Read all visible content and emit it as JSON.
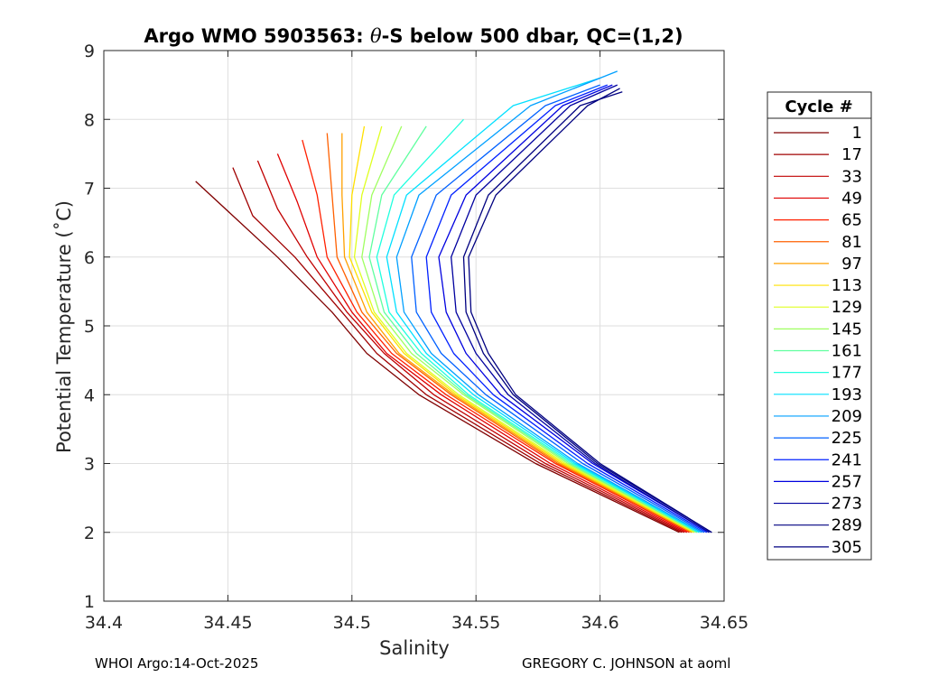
{
  "chart_data": {
    "type": "line",
    "title_prefix": "Argo WMO 5903563: ",
    "title_theta": "θ",
    "title_suffix": "-S below 500 dbar,  QC=(1,2)",
    "xlabel": "Salinity",
    "ylabel": "Potential Temperature (˚C)",
    "xlim": [
      34.4,
      34.65
    ],
    "ylim": [
      1,
      9
    ],
    "xticks": [
      34.4,
      34.45,
      34.5,
      34.55,
      34.6,
      34.65
    ],
    "xtick_labels": [
      "34.4",
      "34.45",
      "34.5",
      "34.55",
      "34.6",
      "34.65"
    ],
    "yticks": [
      1,
      2,
      3,
      4,
      5,
      6,
      7,
      8,
      9
    ],
    "ytick_labels": [
      "1",
      "2",
      "3",
      "4",
      "5",
      "6",
      "7",
      "8",
      "9"
    ],
    "grid": true,
    "legend_title": "Cycle #",
    "legend_position": "outside-right",
    "series": [
      {
        "name": "1",
        "color": "#800000",
        "theta": [
          2.0,
          3.0,
          4.0,
          4.6,
          5.2,
          6.0,
          6.6,
          7.1
        ],
        "salinity": [
          34.632,
          34.574,
          34.527,
          34.506,
          34.492,
          34.47,
          34.452,
          34.437
        ]
      },
      {
        "name": "17",
        "color": "#a00000",
        "theta": [
          2.0,
          3.0,
          4.0,
          4.6,
          5.2,
          6.0,
          6.6,
          7.3
        ],
        "salinity": [
          34.633,
          34.576,
          34.53,
          34.51,
          34.496,
          34.477,
          34.46,
          34.452
        ]
      },
      {
        "name": "33",
        "color": "#c00000",
        "theta": [
          2.0,
          3.0,
          4.0,
          4.6,
          5.2,
          6.0,
          6.7,
          7.4
        ],
        "salinity": [
          34.634,
          34.578,
          34.533,
          34.513,
          34.498,
          34.482,
          34.47,
          34.462
        ]
      },
      {
        "name": "49",
        "color": "#e00000",
        "theta": [
          2.0,
          3.0,
          4.0,
          4.6,
          5.2,
          6.0,
          6.8,
          7.5
        ],
        "salinity": [
          34.635,
          34.58,
          34.536,
          34.514,
          34.5,
          34.486,
          34.478,
          34.47
        ]
      },
      {
        "name": "65",
        "color": "#ff2000",
        "theta": [
          2.0,
          3.0,
          4.0,
          4.6,
          5.2,
          6.0,
          6.9,
          7.7
        ],
        "salinity": [
          34.636,
          34.582,
          34.538,
          34.516,
          34.502,
          34.49,
          34.486,
          34.48
        ]
      },
      {
        "name": "81",
        "color": "#ff6000",
        "theta": [
          2.0,
          3.0,
          4.0,
          4.6,
          5.2,
          6.0,
          6.9,
          7.8
        ],
        "salinity": [
          34.637,
          34.583,
          34.54,
          34.518,
          34.504,
          34.494,
          34.492,
          34.49
        ]
      },
      {
        "name": "97",
        "color": "#ffa000",
        "theta": [
          2.0,
          3.0,
          4.0,
          4.6,
          5.2,
          6.0,
          6.9,
          7.8
        ],
        "salinity": [
          34.637,
          34.584,
          34.541,
          34.519,
          34.506,
          34.497,
          34.496,
          34.496
        ]
      },
      {
        "name": "113",
        "color": "#ffe000",
        "theta": [
          2.0,
          3.0,
          4.0,
          4.6,
          5.2,
          6.0,
          6.9,
          7.9
        ],
        "salinity": [
          34.638,
          34.585,
          34.542,
          34.521,
          34.508,
          34.499,
          34.5,
          34.505
        ]
      },
      {
        "name": "129",
        "color": "#dfff20",
        "theta": [
          2.0,
          3.0,
          4.0,
          4.6,
          5.2,
          6.0,
          6.9,
          7.9
        ],
        "salinity": [
          34.638,
          34.586,
          34.543,
          34.522,
          34.509,
          34.501,
          34.504,
          34.512
        ]
      },
      {
        "name": "145",
        "color": "#9fff60",
        "theta": [
          2.0,
          3.0,
          4.0,
          4.6,
          5.2,
          6.0,
          6.9,
          7.9
        ],
        "salinity": [
          34.639,
          34.587,
          34.545,
          34.524,
          34.511,
          34.504,
          34.508,
          34.52
        ]
      },
      {
        "name": "161",
        "color": "#60ff9f",
        "theta": [
          2.0,
          3.0,
          4.0,
          4.6,
          5.2,
          6.0,
          6.9,
          7.9
        ],
        "salinity": [
          34.639,
          34.588,
          34.546,
          34.526,
          34.513,
          34.507,
          34.512,
          34.53
        ]
      },
      {
        "name": "177",
        "color": "#20ffdf",
        "theta": [
          2.0,
          3.0,
          4.0,
          4.6,
          5.2,
          6.0,
          6.9,
          8.0
        ],
        "salinity": [
          34.64,
          34.589,
          34.547,
          34.528,
          34.515,
          34.51,
          34.517,
          34.545
        ]
      },
      {
        "name": "193",
        "color": "#00e0ff",
        "theta": [
          2.0,
          3.0,
          4.0,
          4.6,
          5.2,
          6.0,
          6.9,
          8.2,
          8.6
        ],
        "salinity": [
          34.64,
          34.59,
          34.549,
          34.53,
          34.518,
          34.514,
          34.522,
          34.565,
          34.6
        ]
      },
      {
        "name": "209",
        "color": "#00a0ff",
        "theta": [
          2.0,
          3.0,
          4.0,
          4.6,
          5.2,
          6.0,
          6.9,
          8.2,
          8.7
        ],
        "salinity": [
          34.641,
          34.591,
          34.551,
          34.532,
          34.521,
          34.518,
          34.527,
          34.572,
          34.607
        ]
      },
      {
        "name": "225",
        "color": "#0060ff",
        "theta": [
          2.0,
          3.0,
          4.0,
          4.6,
          5.2,
          6.0,
          6.9,
          8.2,
          8.5
        ],
        "salinity": [
          34.642,
          34.593,
          34.554,
          34.536,
          34.526,
          34.524,
          34.534,
          34.578,
          34.6
        ]
      },
      {
        "name": "241",
        "color": "#0020ff",
        "theta": [
          2.0,
          3.0,
          4.0,
          4.6,
          5.2,
          6.0,
          6.9,
          8.2,
          8.5
        ],
        "salinity": [
          34.643,
          34.595,
          34.557,
          34.541,
          34.532,
          34.53,
          34.54,
          34.582,
          34.603
        ]
      },
      {
        "name": "257",
        "color": "#0000df",
        "theta": [
          2.0,
          3.0,
          4.0,
          4.6,
          5.2,
          6.0,
          6.9,
          8.2,
          8.5
        ],
        "salinity": [
          34.644,
          34.597,
          34.56,
          34.546,
          34.538,
          34.535,
          34.546,
          34.585,
          34.605
        ]
      },
      {
        "name": "273",
        "color": "#00009f",
        "theta": [
          2.0,
          3.0,
          4.0,
          4.6,
          5.2,
          6.0,
          6.9,
          8.2,
          8.5
        ],
        "salinity": [
          34.644,
          34.598,
          34.563,
          34.55,
          34.542,
          34.54,
          34.55,
          34.588,
          34.607
        ]
      },
      {
        "name": "289",
        "color": "#000080",
        "theta": [
          2.0,
          3.0,
          4.0,
          4.6,
          5.2,
          6.0,
          6.9,
          8.2,
          8.4
        ],
        "salinity": [
          34.645,
          34.599,
          34.565,
          34.553,
          34.546,
          34.545,
          34.555,
          34.592,
          34.609
        ]
      },
      {
        "name": "305",
        "color": "#000080",
        "theta": [
          2.0,
          3.0,
          4.0,
          4.6,
          5.2,
          6.0,
          6.9,
          8.2,
          8.45
        ],
        "salinity": [
          34.645,
          34.6,
          34.566,
          34.555,
          34.548,
          34.547,
          34.558,
          34.595,
          34.608
        ]
      }
    ]
  },
  "footer": {
    "left": "WHOI Argo:14-Oct-2025",
    "right": "GREGORY C. JOHNSON at aoml"
  }
}
